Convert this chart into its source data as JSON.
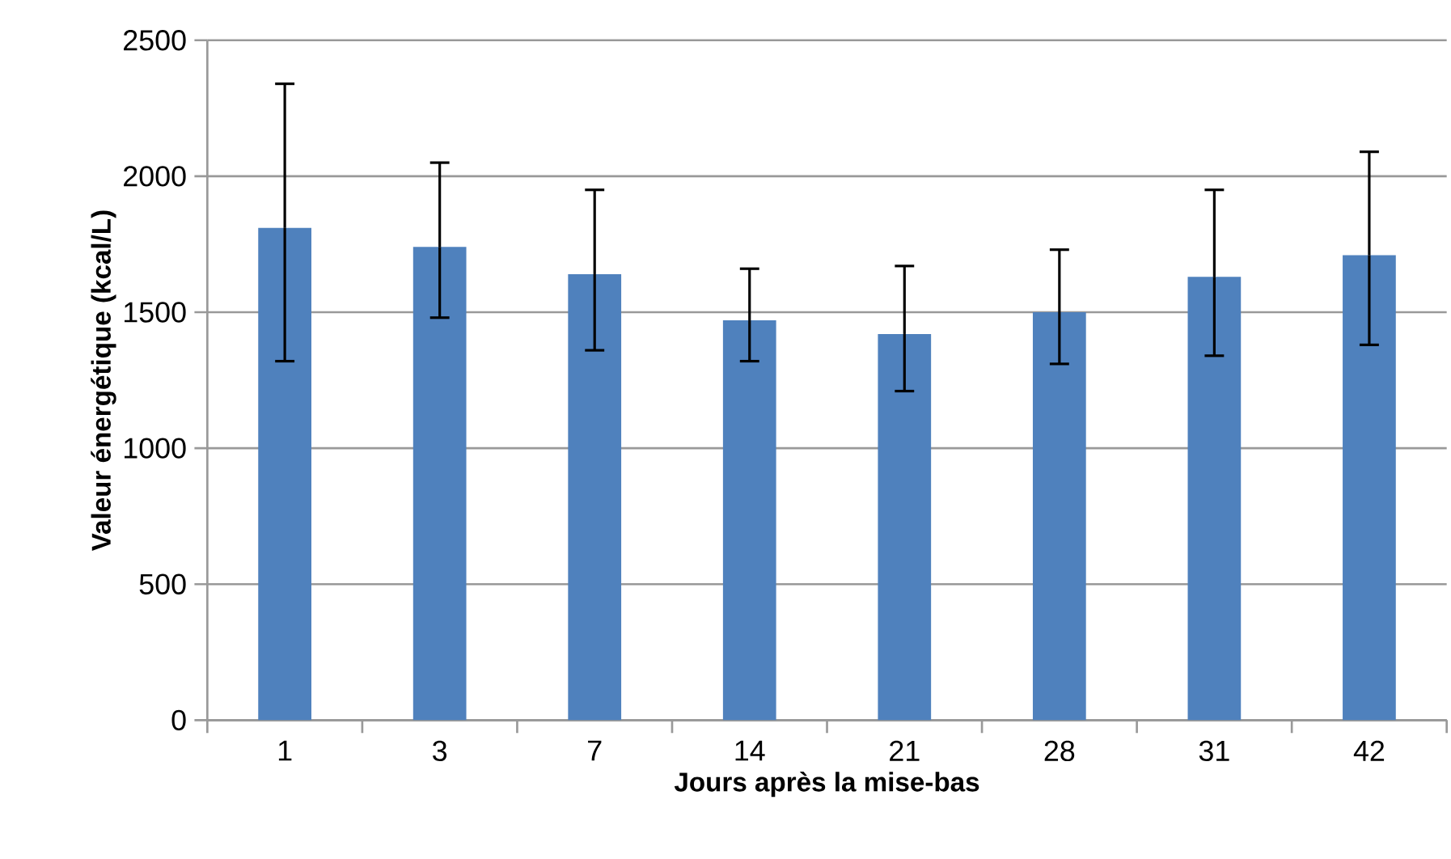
{
  "chart_data": {
    "type": "bar",
    "xlabel": "Jours après la mise-bas",
    "ylabel": "Valeur énergétique (kcal/L)",
    "categories": [
      "1",
      "3",
      "7",
      "14",
      "21",
      "28",
      "31",
      "42"
    ],
    "values": [
      1810,
      1740,
      1640,
      1470,
      1420,
      1500,
      1630,
      1710
    ],
    "errors": [
      [
        1320,
        2340
      ],
      [
        1480,
        2050
      ],
      [
        1360,
        1950
      ],
      [
        1320,
        1660
      ],
      [
        1210,
        1670
      ],
      [
        1310,
        1730
      ],
      [
        1340,
        1950
      ],
      [
        1380,
        2090
      ]
    ],
    "color": "#4f81bd",
    "ylim": [
      0,
      2500
    ],
    "yticks": [
      0,
      500,
      1000,
      1500,
      2000,
      2500
    ],
    "grid": "y"
  }
}
